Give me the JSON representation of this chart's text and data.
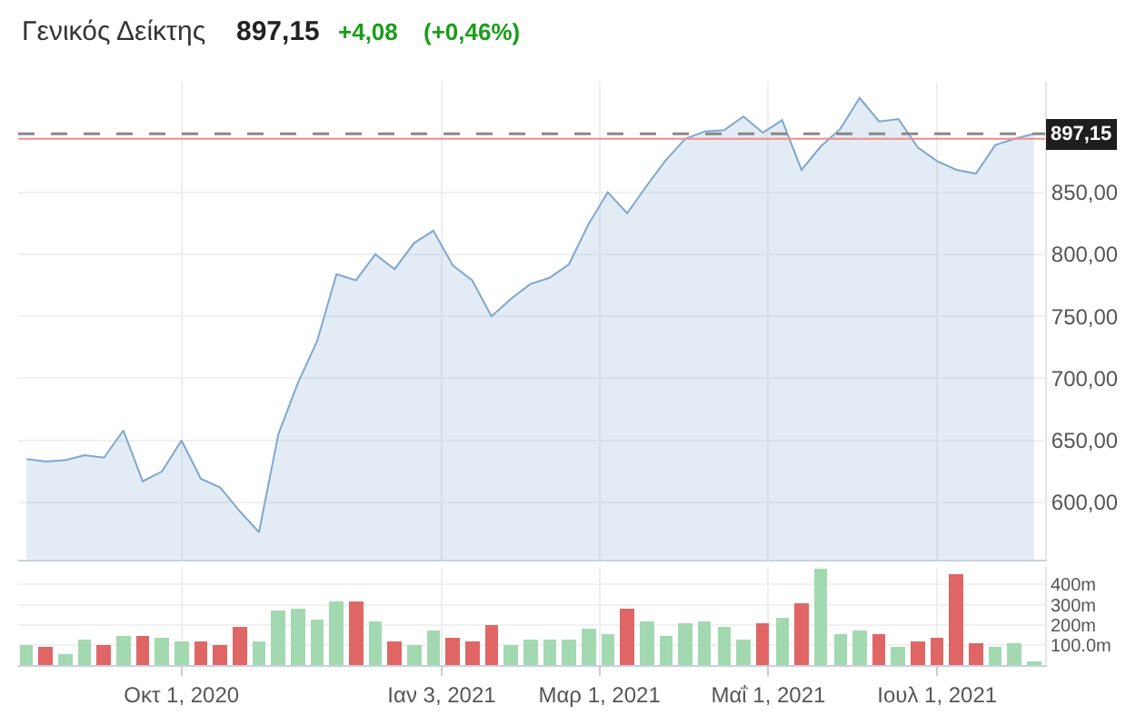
{
  "chart_data": [
    {
      "type": "area",
      "title": "Γενικός Δείκτης",
      "annotations": [
        "897,15",
        "+4,08",
        "(+0,46%)"
      ],
      "x": [
        "2020-08-06",
        "2020-08-13",
        "2020-08-20",
        "2020-08-27",
        "2020-09-03",
        "2020-09-10",
        "2020-09-17",
        "2020-09-24",
        "2020-10-01",
        "2020-10-08",
        "2020-10-15",
        "2020-10-22",
        "2020-10-29",
        "2020-11-05",
        "2020-11-12",
        "2020-11-19",
        "2020-11-26",
        "2020-12-03",
        "2020-12-10",
        "2020-12-17",
        "2020-12-24",
        "2020-12-31",
        "2021-01-07",
        "2021-01-14",
        "2021-01-21",
        "2021-01-28",
        "2021-02-04",
        "2021-02-11",
        "2021-02-18",
        "2021-02-25",
        "2021-03-04",
        "2021-03-11",
        "2021-03-18",
        "2021-03-25",
        "2021-04-01",
        "2021-04-08",
        "2021-04-15",
        "2021-04-22",
        "2021-04-29",
        "2021-05-06",
        "2021-05-13",
        "2021-05-20",
        "2021-05-27",
        "2021-06-03",
        "2021-06-10",
        "2021-06-17",
        "2021-06-24",
        "2021-07-01",
        "2021-07-08",
        "2021-07-15",
        "2021-07-22",
        "2021-07-29",
        "2021-08-05"
      ],
      "series": [
        {
          "color": "#7fa7cf",
          "values": [
            635,
            633,
            634,
            638,
            636,
            658,
            617,
            625,
            650,
            619,
            612,
            593,
            576,
            655,
            696,
            730,
            784,
            779,
            800,
            788,
            809,
            819,
            791,
            779,
            750,
            764,
            776,
            781,
            792,
            824,
            850,
            833,
            855,
            876,
            893,
            899,
            900,
            911,
            898,
            908,
            868,
            887,
            901,
            926,
            907,
            909,
            886,
            875,
            868,
            865,
            888,
            893,
            897.15
          ]
        }
      ],
      "xlim": [
        "2020-08-03",
        "2021-08-09"
      ],
      "xticks": [
        {
          "value": "2020-10-01",
          "label": null
        },
        {
          "value": "2021-01-03",
          "label": null
        },
        {
          "value": "2021-03-01",
          "label": null
        },
        {
          "value": "2021-05-01",
          "label": null
        },
        {
          "value": "2021-07-01",
          "label": null
        }
      ],
      "ylim": [
        554,
        939
      ],
      "yticks": [
        {
          "value": 600,
          "label": "600,00"
        },
        {
          "value": 650,
          "label": "650,00"
        },
        {
          "value": 700,
          "label": "700,00"
        },
        {
          "value": 750,
          "label": "750,00"
        },
        {
          "value": 800,
          "label": "800,00"
        },
        {
          "value": 850,
          "label": "850,00"
        }
      ],
      "ref_lines": [
        {
          "axis": "y",
          "value": 897.15,
          "label": "897,15",
          "color": "#888888",
          "line_style": "dashed"
        },
        {
          "axis": "y",
          "value": 893.07,
          "color": "#f28b8b",
          "line_style": "solid"
        }
      ],
      "grid": true,
      "tick_labels": "y"
    },
    {
      "type": "bar",
      "x": [
        "2020-08-06",
        "2020-08-13",
        "2020-08-20",
        "2020-08-27",
        "2020-09-03",
        "2020-09-10",
        "2020-09-17",
        "2020-09-24",
        "2020-10-01",
        "2020-10-08",
        "2020-10-15",
        "2020-10-22",
        "2020-10-29",
        "2020-11-05",
        "2020-11-12",
        "2020-11-19",
        "2020-11-26",
        "2020-12-03",
        "2020-12-10",
        "2020-12-17",
        "2020-12-24",
        "2020-12-31",
        "2021-01-07",
        "2021-01-14",
        "2021-01-21",
        "2021-01-28",
        "2021-02-04",
        "2021-02-11",
        "2021-02-18",
        "2021-02-25",
        "2021-03-04",
        "2021-03-11",
        "2021-03-18",
        "2021-03-25",
        "2021-04-01",
        "2021-04-08",
        "2021-04-15",
        "2021-04-22",
        "2021-04-29",
        "2021-05-06",
        "2021-05-13",
        "2021-05-20",
        "2021-05-27",
        "2021-06-03",
        "2021-06-10",
        "2021-06-17",
        "2021-06-24",
        "2021-07-01",
        "2021-07-08",
        "2021-07-15",
        "2021-07-22",
        "2021-07-29",
        "2021-08-05"
      ],
      "values": [
        100,
        90,
        60,
        130,
        100,
        150,
        150,
        140,
        120,
        120,
        100,
        190,
        120,
        270,
        280,
        230,
        320,
        320,
        220,
        120,
        100,
        170,
        140,
        120,
        200,
        100,
        130,
        130,
        130,
        180,
        160,
        280,
        220,
        150,
        210,
        220,
        190,
        130,
        210,
        240,
        310,
        480,
        160,
        170,
        160,
        90,
        120,
        140,
        450,
        110,
        90,
        110,
        20
      ],
      "colors": [
        "#a3d9b1",
        "#e06666",
        "#a3d9b1",
        "#a3d9b1",
        "#e06666",
        "#a3d9b1",
        "#e06666",
        "#a3d9b1",
        "#a3d9b1",
        "#e06666",
        "#e06666",
        "#e06666",
        "#a3d9b1",
        "#a3d9b1",
        "#a3d9b1",
        "#a3d9b1",
        "#a3d9b1",
        "#e06666",
        "#a3d9b1",
        "#e06666",
        "#a3d9b1",
        "#a3d9b1",
        "#e06666",
        "#e06666",
        "#e06666",
        "#a3d9b1",
        "#a3d9b1",
        "#a3d9b1",
        "#a3d9b1",
        "#a3d9b1",
        "#a3d9b1",
        "#e06666",
        "#a3d9b1",
        "#a3d9b1",
        "#a3d9b1",
        "#a3d9b1",
        "#a3d9b1",
        "#a3d9b1",
        "#e06666",
        "#a3d9b1",
        "#e06666",
        "#a3d9b1",
        "#a3d9b1",
        "#a3d9b1",
        "#e06666",
        "#a3d9b1",
        "#e06666",
        "#e06666",
        "#e06666",
        "#e06666",
        "#a3d9b1",
        "#a3d9b1",
        "#a3d9b1"
      ],
      "xlim": [
        "2020-08-03",
        "2021-08-09"
      ],
      "xticks": [
        {
          "value": "2020-10-01",
          "label": "Οκτ 1, 2020"
        },
        {
          "value": "2021-01-03",
          "label": "Ιαν 3, 2021"
        },
        {
          "value": "2021-03-01",
          "label": "Μαρ 1, 2021"
        },
        {
          "value": "2021-05-01",
          "label": "Μαΐ 1, 2021"
        },
        {
          "value": "2021-07-01",
          "label": "Ιουλ 1, 2021"
        }
      ],
      "ylim": [
        0,
        490
      ],
      "yticks": [
        {
          "value": 100,
          "label": "100.0m"
        },
        {
          "value": 200,
          "label": "200m"
        },
        {
          "value": 300,
          "label": "300m"
        },
        {
          "value": 400,
          "label": "400m"
        }
      ],
      "grid": true
    }
  ]
}
